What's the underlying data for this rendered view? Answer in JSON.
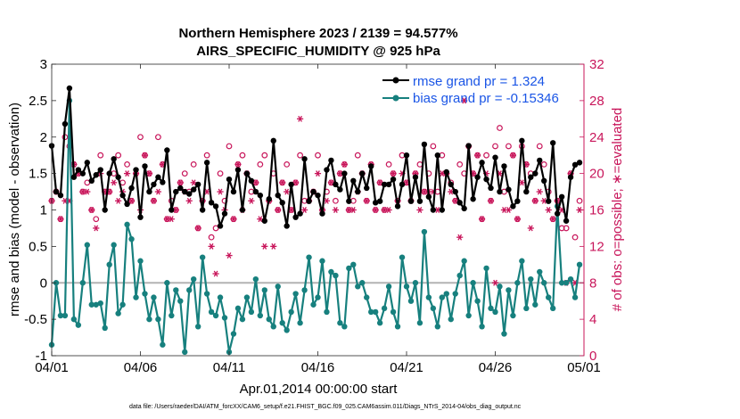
{
  "chart_data": {
    "type": "line",
    "title": "Northern Hemisphere 2023 / 2139 = 94.577%",
    "subtitle": "AIRS_SPECIFIC_HUMIDITY @ 925 hPa",
    "xlabel": "Apr.01,2014 00:00:00 start",
    "ylabel": "rmse and bias (model - observation)",
    "ylabel_right": "# of obs: o=possible; ∗=evaluated",
    "xlim": [
      0,
      30
    ],
    "ylim": [
      -1,
      3
    ],
    "ylim_right": [
      0,
      32
    ],
    "x_ticks": [
      0,
      5,
      10,
      15,
      20,
      25,
      30
    ],
    "x_tick_labels": [
      "04/01",
      "04/06",
      "04/11",
      "04/16",
      "04/21",
      "04/26",
      "05/01"
    ],
    "y_ticks": [
      -1,
      -0.5,
      0,
      0.5,
      1,
      1.5,
      2,
      2.5,
      3
    ],
    "y_tick_labels": [
      "-1",
      "-0.5",
      "0",
      "0.5",
      "1",
      "1.5",
      "2",
      "2.5",
      "3"
    ],
    "y_ticks_right": [
      0,
      4,
      8,
      12,
      16,
      20,
      24,
      28,
      32
    ],
    "y_tick_labels_right": [
      "0",
      "4",
      "8",
      "12",
      "16",
      "20",
      "24",
      "28",
      "32"
    ],
    "zero_line": 0,
    "footnote": "data file: /Users/raeder/DAI/ATM_forcXX/CAM6_setup/f.e21.FHIST_BGC.f09_025.CAM6assim.011/Diags_NTrS_2014-04/obs_diag_output.nc",
    "series": [
      {
        "name": "rmse grand pr = 1.324",
        "axis": "left",
        "color": "#000000",
        "x": [
          0.0,
          0.25,
          0.5,
          0.75,
          1.0,
          1.25,
          1.5,
          1.75,
          2.0,
          2.25,
          2.5,
          2.75,
          3.0,
          3.25,
          3.5,
          3.75,
          4.0,
          4.25,
          4.5,
          4.75,
          5.0,
          5.25,
          5.5,
          5.75,
          6.0,
          6.25,
          6.5,
          6.75,
          7.0,
          7.25,
          7.5,
          7.75,
          8.0,
          8.25,
          8.5,
          8.75,
          9.0,
          9.25,
          9.5,
          9.75,
          10.0,
          10.25,
          10.5,
          10.75,
          11.0,
          11.25,
          11.5,
          11.75,
          12.0,
          12.25,
          12.5,
          12.75,
          13.0,
          13.25,
          13.5,
          13.75,
          14.0,
          14.25,
          14.5,
          14.75,
          15.0,
          15.25,
          15.5,
          15.75,
          16.0,
          16.25,
          16.5,
          16.75,
          17.0,
          17.25,
          17.5,
          17.75,
          18.0,
          18.25,
          18.5,
          18.75,
          19.0,
          19.25,
          19.5,
          19.75,
          20.0,
          20.25,
          20.5,
          20.75,
          21.0,
          21.25,
          21.5,
          21.75,
          22.0,
          22.25,
          22.5,
          22.75,
          23.0,
          23.25,
          23.5,
          23.75,
          24.0,
          24.25,
          24.5,
          24.75,
          25.0,
          25.25,
          25.5,
          25.75,
          26.0,
          26.25,
          26.5,
          26.75,
          27.0,
          27.25,
          27.5,
          27.75,
          28.0,
          28.25,
          28.5,
          28.75,
          29.0,
          29.25,
          29.5,
          29.75
        ],
        "values": [
          1.88,
          1.25,
          1.2,
          2.18,
          2.67,
          1.45,
          1.55,
          1.5,
          1.65,
          1.4,
          1.48,
          1.55,
          1.0,
          1.5,
          1.7,
          1.45,
          1.2,
          1.08,
          1.3,
          1.55,
          0.9,
          1.6,
          1.25,
          1.35,
          1.45,
          1.38,
          1.82,
          1.0,
          1.25,
          1.3,
          1.25,
          1.22,
          1.28,
          1.35,
          1.0,
          1.65,
          1.1,
          1.05,
          0.78,
          0.95,
          1.42,
          1.25,
          1.55,
          1.0,
          1.5,
          1.4,
          1.25,
          1.2,
          0.85,
          1.15,
          1.95,
          1.2,
          1.1,
          0.78,
          1.35,
          0.9,
          0.95,
          1.7,
          1.12,
          1.25,
          1.2,
          0.95,
          1.55,
          1.68,
          1.35,
          1.28,
          1.5,
          1.12,
          1.4,
          1.25,
          1.5,
          1.3,
          1.6,
          1.1,
          1.12,
          1.35,
          1.35,
          1.42,
          1.05,
          1.35,
          1.75,
          1.12,
          1.45,
          1.12,
          1.9,
          1.18,
          1.0,
          1.75,
          1.0,
          1.52,
          1.35,
          1.25,
          1.1,
          1.02,
          1.88,
          1.15,
          1.45,
          1.65,
          1.42,
          1.3,
          1.72,
          1.25,
          1.6,
          1.28,
          1.05,
          1.12,
          1.95,
          1.25,
          1.45,
          1.5,
          1.68,
          1.4,
          1.12,
          1.92,
          0.95,
          1.18,
          0.85,
          1.45,
          1.62,
          1.65
        ]
      },
      {
        "name": "bias grand pr = -0.15346",
        "axis": "left",
        "color": "#17807e",
        "x": [
          0.0,
          0.25,
          0.5,
          0.75,
          1.0,
          1.25,
          1.5,
          1.75,
          2.0,
          2.25,
          2.5,
          2.75,
          3.0,
          3.25,
          3.5,
          3.75,
          4.0,
          4.25,
          4.5,
          4.75,
          5.0,
          5.25,
          5.5,
          5.75,
          6.0,
          6.25,
          6.5,
          6.75,
          7.0,
          7.25,
          7.5,
          7.75,
          8.0,
          8.25,
          8.5,
          8.75,
          9.0,
          9.25,
          9.5,
          9.75,
          10.0,
          10.25,
          10.5,
          10.75,
          11.0,
          11.25,
          11.5,
          11.75,
          12.0,
          12.25,
          12.5,
          12.75,
          13.0,
          13.25,
          13.5,
          13.75,
          14.0,
          14.25,
          14.5,
          14.75,
          15.0,
          15.25,
          15.5,
          15.75,
          16.0,
          16.25,
          16.5,
          16.75,
          17.0,
          17.25,
          17.5,
          17.75,
          18.0,
          18.25,
          18.5,
          18.75,
          19.0,
          19.25,
          19.5,
          19.75,
          20.0,
          20.25,
          20.5,
          20.75,
          21.0,
          21.25,
          21.5,
          21.75,
          22.0,
          22.25,
          22.5,
          22.75,
          23.0,
          23.25,
          23.5,
          23.75,
          24.0,
          24.25,
          24.5,
          24.75,
          25.0,
          25.25,
          25.5,
          25.75,
          26.0,
          26.25,
          26.5,
          26.75,
          27.0,
          27.25,
          27.5,
          27.75,
          28.0,
          28.25,
          28.5,
          28.75,
          29.0,
          29.25,
          29.5,
          29.75
        ],
        "values": [
          -0.85,
          0.0,
          -0.45,
          -0.45,
          2.5,
          -0.5,
          -0.58,
          0.0,
          0.52,
          -0.3,
          -0.3,
          -0.28,
          -0.62,
          0.25,
          0.52,
          -0.42,
          -0.3,
          0.8,
          0.6,
          -0.2,
          0.3,
          -0.15,
          -0.5,
          -0.2,
          -0.5,
          -0.85,
          0.0,
          -0.45,
          -0.1,
          -0.25,
          -0.95,
          -0.1,
          0.05,
          -0.6,
          0.35,
          -0.15,
          -0.4,
          -0.45,
          -0.2,
          -0.48,
          -0.95,
          -0.7,
          -0.35,
          -0.5,
          -0.2,
          -0.4,
          0.05,
          -0.45,
          -0.1,
          -0.5,
          -0.6,
          -0.05,
          -0.55,
          -0.65,
          -0.4,
          -0.15,
          -0.55,
          -0.1,
          0.35,
          -0.3,
          -0.2,
          0.3,
          -0.4,
          0.15,
          0.1,
          -0.55,
          -0.6,
          0.2,
          0.25,
          -0.05,
          0.0,
          -0.2,
          -0.4,
          -0.4,
          -0.55,
          -0.35,
          -0.05,
          -0.4,
          -0.6,
          0.35,
          -0.05,
          -0.25,
          0.0,
          -0.55,
          0.7,
          -0.2,
          -0.35,
          -0.6,
          -0.2,
          -0.15,
          -0.5,
          -0.15,
          0.1,
          0.3,
          -0.45,
          0.0,
          -0.25,
          -0.6,
          0.2,
          -0.35,
          -0.4,
          -0.05,
          -0.7,
          -0.1,
          -0.45,
          0.0,
          0.3,
          -0.35,
          0.05,
          -0.3,
          0.15,
          0.0,
          -0.2,
          -0.35,
          1.05,
          0.0,
          0.0,
          0.05,
          -0.2,
          0.25
        ]
      },
      {
        "name": "possible",
        "axis": "right",
        "marker": "o",
        "color": "#c8155a",
        "x": [
          0.0,
          0.25,
          0.5,
          0.75,
          1.0,
          1.25,
          1.5,
          1.75,
          2.0,
          2.25,
          2.5,
          2.75,
          3.0,
          3.25,
          3.5,
          3.75,
          4.0,
          4.25,
          4.5,
          4.75,
          5.0,
          5.25,
          5.5,
          5.75,
          6.0,
          6.25,
          6.5,
          6.75,
          7.0,
          7.25,
          7.5,
          7.75,
          8.0,
          8.25,
          8.5,
          8.75,
          9.0,
          9.25,
          9.5,
          9.75,
          10.0,
          10.25,
          10.5,
          10.75,
          11.0,
          11.25,
          11.5,
          11.75,
          12.0,
          12.25,
          12.5,
          12.75,
          13.0,
          13.25,
          13.5,
          13.75,
          14.0,
          14.25,
          14.5,
          14.75,
          15.0,
          15.25,
          15.5,
          15.75,
          16.0,
          16.25,
          16.5,
          16.75,
          17.0,
          17.25,
          17.5,
          17.75,
          18.0,
          18.25,
          18.5,
          18.75,
          19.0,
          19.25,
          19.5,
          19.75,
          20.0,
          20.25,
          20.5,
          20.75,
          21.0,
          21.25,
          21.5,
          21.75,
          22.0,
          22.25,
          22.5,
          22.75,
          23.0,
          23.25,
          23.5,
          23.75,
          24.0,
          24.25,
          24.5,
          24.75,
          25.0,
          25.25,
          25.5,
          25.75,
          26.0,
          26.25,
          26.5,
          26.75,
          27.0,
          27.25,
          27.5,
          27.75,
          28.0,
          28.25,
          28.5,
          28.75,
          29.0,
          29.25,
          29.5,
          29.75
        ],
        "values": [
          17,
          18,
          15,
          24,
          23,
          21,
          20,
          18,
          19,
          16,
          15,
          22,
          18,
          18,
          20,
          22,
          19,
          21,
          17,
          20,
          24,
          22,
          20,
          17,
          24,
          21,
          15,
          17,
          16,
          19,
          20,
          18,
          21,
          14,
          17,
          22,
          13,
          14,
          20,
          17,
          23,
          15,
          21,
          22,
          20,
          18,
          19,
          21,
          22,
          17,
          20,
          16,
          19,
          21,
          16,
          19,
          22,
          17,
          17,
          18,
          22,
          16,
          18,
          19,
          17,
          20,
          21,
          16,
          17,
          22,
          20,
          17,
          21,
          16,
          19,
          16,
          21,
          20,
          17,
          22,
          19,
          17,
          20,
          21,
          18,
          20,
          23,
          18,
          22,
          20,
          19,
          17,
          21,
          20,
          23,
          20,
          22,
          15,
          22,
          17,
          23,
          25,
          18,
          23,
          22,
          15,
          23,
          21,
          20,
          17,
          23,
          21,
          18,
          15,
          17,
          14,
          14,
          20,
          13,
          17
        ]
      },
      {
        "name": "evaluated",
        "axis": "right",
        "marker": "*",
        "color": "#c8155a",
        "x": [
          0.0,
          0.25,
          0.5,
          0.75,
          1.0,
          1.25,
          1.5,
          1.75,
          2.0,
          2.25,
          2.5,
          2.75,
          3.0,
          3.25,
          3.5,
          3.75,
          4.0,
          4.25,
          4.5,
          4.75,
          5.0,
          5.25,
          5.5,
          5.75,
          6.0,
          6.25,
          6.5,
          6.75,
          7.0,
          7.25,
          7.5,
          7.75,
          8.0,
          8.25,
          8.5,
          8.75,
          9.0,
          9.25,
          9.5,
          9.75,
          10.0,
          10.25,
          10.5,
          10.75,
          11.0,
          11.25,
          11.5,
          11.75,
          12.0,
          12.25,
          12.5,
          12.75,
          13.0,
          13.25,
          13.5,
          13.75,
          14.0,
          14.25,
          14.5,
          14.75,
          15.0,
          15.25,
          15.5,
          15.75,
          16.0,
          16.25,
          16.5,
          16.75,
          17.0,
          17.25,
          17.5,
          17.75,
          18.0,
          18.25,
          18.5,
          18.75,
          19.0,
          19.25,
          19.5,
          19.75,
          20.0,
          20.25,
          20.5,
          20.75,
          21.0,
          21.25,
          21.5,
          21.75,
          22.0,
          22.25,
          22.5,
          22.75,
          23.0,
          23.25,
          23.5,
          23.75,
          24.0,
          24.25,
          24.5,
          24.75,
          25.0,
          25.25,
          25.5,
          25.75,
          26.0,
          26.25,
          26.5,
          26.75,
          27.0,
          27.25,
          27.5,
          27.75,
          28.0,
          28.25,
          28.5,
          28.75,
          29.0,
          29.25,
          29.5,
          29.75
        ],
        "values": [
          17,
          18,
          15,
          17,
          17,
          21,
          20,
          18,
          18,
          16,
          14,
          20,
          18,
          18,
          19,
          17,
          18,
          20,
          17,
          20,
          16,
          22,
          20,
          17,
          18,
          21,
          15,
          15,
          16,
          19,
          18,
          17,
          19,
          14,
          17,
          18,
          12,
          9,
          18,
          16,
          11,
          15,
          21,
          16,
          20,
          17,
          19,
          15,
          12,
          17,
          12,
          16,
          19,
          18,
          16,
          19,
          26,
          16,
          17,
          18,
          20,
          16,
          17,
          19,
          16,
          20,
          21,
          16,
          16,
          18,
          20,
          17,
          21,
          16,
          19,
          16,
          16,
          20,
          17,
          20,
          19,
          17,
          20,
          16,
          18,
          18,
          18,
          16,
          20,
          20,
          18,
          17,
          13,
          28,
          23,
          20,
          22,
          15,
          20,
          17,
          8,
          20,
          16,
          16,
          22,
          15,
          19,
          21,
          14,
          17,
          18,
          17,
          16,
          15,
          17,
          16,
          8,
          20,
          8,
          16
        ]
      }
    ]
  }
}
